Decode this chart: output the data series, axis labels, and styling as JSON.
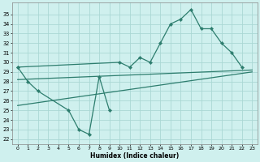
{
  "title": "",
  "xlabel": "Humidex (Indice chaleur)",
  "xlim": [
    -0.5,
    23.5
  ],
  "ylim": [
    21.5,
    36.2
  ],
  "xticks": [
    0,
    1,
    2,
    3,
    4,
    5,
    6,
    7,
    8,
    9,
    10,
    11,
    12,
    13,
    14,
    15,
    16,
    17,
    18,
    19,
    20,
    21,
    22,
    23
  ],
  "yticks": [
    22,
    23,
    24,
    25,
    26,
    27,
    28,
    29,
    30,
    31,
    32,
    33,
    34,
    35
  ],
  "bg_color": "#cff0ee",
  "grid_color": "#aad8d4",
  "line_color": "#2d7d6e",
  "line_width": 0.9,
  "marker": "D",
  "marker_size": 2.2,
  "curve1_x": [
    0,
    1,
    2,
    5,
    6,
    7,
    8,
    9
  ],
  "curve1_y": [
    29.5,
    28.0,
    27.0,
    25.0,
    23.0,
    22.5,
    28.5,
    25.0
  ],
  "curve2_x": [
    0,
    10,
    11,
    12,
    13,
    14,
    15,
    16,
    17,
    18,
    19,
    20,
    21,
    22
  ],
  "curve2_y": [
    29.5,
    30.0,
    29.5,
    30.5,
    30.0,
    32.0,
    34.0,
    34.5,
    35.5,
    33.5,
    33.5,
    32.0,
    31.0,
    29.5
  ],
  "regline1_x": [
    0,
    23
  ],
  "regline1_y": [
    28.2,
    29.2
  ],
  "regline2_x": [
    0,
    23
  ],
  "regline2_y": [
    25.5,
    29.0
  ]
}
